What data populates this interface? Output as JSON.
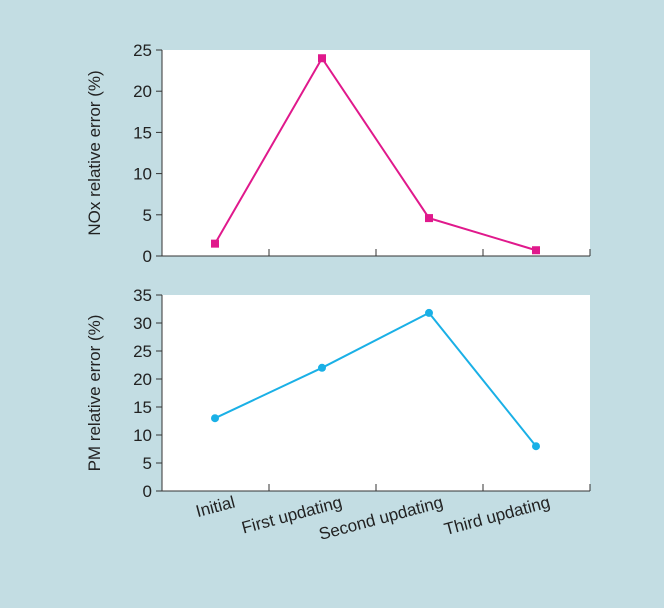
{
  "chart_data": [
    {
      "type": "line",
      "title": "",
      "xlabel": "",
      "ylabel": "NOx relative error (%)",
      "categories": [
        "Initial",
        "First updating",
        "Second updating",
        "Third updating"
      ],
      "series": [
        {
          "values": [
            1.5,
            24,
            4.6,
            0.7
          ]
        }
      ],
      "ylim": [
        0,
        25
      ],
      "yticks": [
        0,
        5,
        10,
        15,
        20,
        25
      ],
      "grid": false,
      "color": "#e0198c",
      "marker": "square"
    },
    {
      "type": "line",
      "title": "",
      "xlabel": "",
      "ylabel": "PM relative error (%)",
      "categories": [
        "Initial",
        "First updating",
        "Second updating",
        "Third updating"
      ],
      "series": [
        {
          "values": [
            13,
            22,
            31.8,
            8
          ]
        }
      ],
      "ylim": [
        0,
        35
      ],
      "yticks": [
        0,
        5,
        10,
        15,
        20,
        25,
        30,
        35
      ],
      "grid": false,
      "color": "#1ab0e6",
      "marker": "circle"
    }
  ]
}
